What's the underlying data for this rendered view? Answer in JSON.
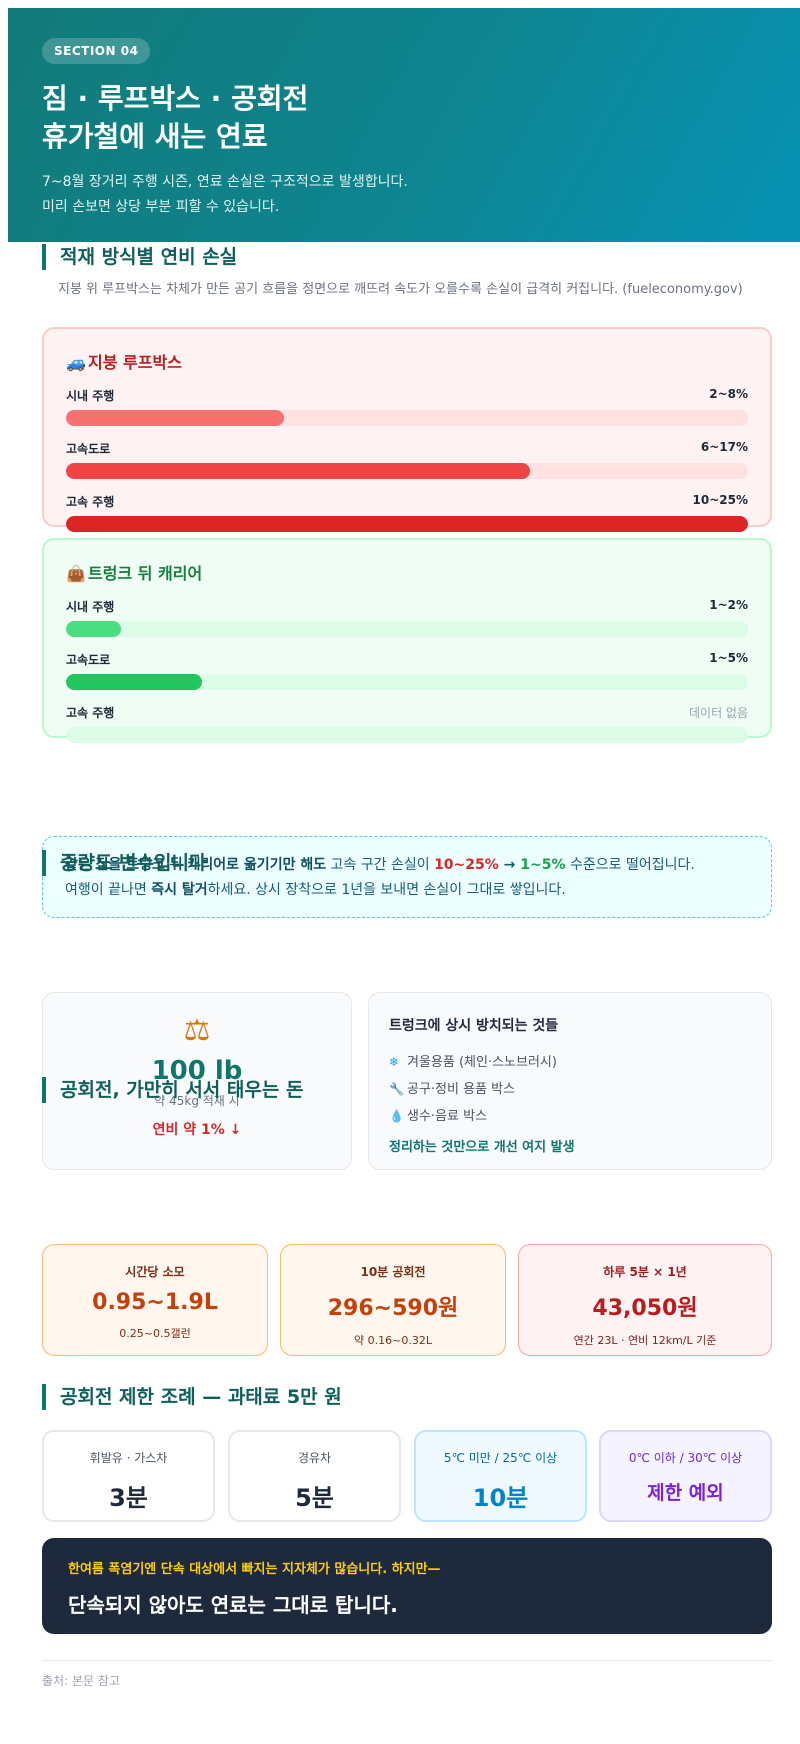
{
  "header": {
    "badge": "SECTION 04",
    "title_line1": "짐 · 루프박스 · 공회전",
    "title_line2": "휴가철에 새는 연료",
    "desc_line1": "7~8월 장거리 주행 시즌, 연료 손실은 구조적으로 발생합니다.",
    "desc_line2": "미리 손보면 상당 부분 피할 수 있습니다."
  },
  "load": {
    "title": "적재 방식별 연비 손실",
    "subtitle": "지붕 위 루프박스는 차체가 만든 공기 흐름을 정면으로 깨뜨려 속도가 오를수록 손실이 급격히 커집니다. (fueleconomy.gov)",
    "roof": {
      "icon": "car-icon",
      "title": "지붕 루프박스",
      "rows": [
        {
          "label": "시내 주행",
          "value": "2~8%",
          "level": 0.32,
          "color": "#f87171"
        },
        {
          "label": "고속도로",
          "value": "6~17%",
          "level": 0.68,
          "color": "#ef4444"
        },
        {
          "label": "고속 주행",
          "value": "10~25%",
          "level": 1.0,
          "color": "#dc2626"
        }
      ]
    },
    "carrier": {
      "icon": "luggage-icon",
      "title": "트렁크 뒤 캐리어",
      "rows": [
        {
          "label": "시내 주행",
          "value": "1~2%",
          "level": 0.08,
          "color": "#4ade80"
        },
        {
          "label": "고속도로",
          "value": "1~5%",
          "level": 0.2,
          "color": "#22c55e"
        },
        {
          "label": "고속 주행",
          "value": "데이터 없음",
          "level": 0,
          "color": "#22c55e"
        }
      ]
    }
  },
  "note": {
    "line1_a": "같은 짐을 트렁크 뒤 캐리어로 옮기기만 해도",
    "line1_b": " 고속 구간 손실이 ",
    "line1_red": "10~25%",
    "line1_arrow": " → ",
    "line1_green": "1~5%",
    "line1_c": " 수준으로 떨어집니다.",
    "line2_a": "여행이 끝나면 ",
    "line2_b": "즉시 탈거",
    "line2_c": "하세요. 상시 장착으로 1년을 보내면 손실이 그대로 쌓입니다."
  },
  "weight": {
    "title": "중량도 변수입니다",
    "icon": "scale-icon",
    "value": "100 lb",
    "sub": "약 45kg 적재 시",
    "drop": "연비 약 1% ↓",
    "list_title": "트렁크에 상시 방치되는 것들",
    "items": [
      {
        "icon": "snowflake-icon",
        "glyph": "❄",
        "label": "겨울용품 (체인·스노브러시)"
      },
      {
        "icon": "wrench-icon",
        "glyph": "🔧",
        "label": "공구·정비 용품 박스"
      },
      {
        "icon": "water-drop-icon",
        "glyph": "💧",
        "label": "생수·음료 박스"
      }
    ],
    "foot": "정리하는 것만으로 개선 여지 발생"
  },
  "idle": {
    "title": "공회전, 가만히 서서 태우는 돈",
    "cards": [
      {
        "label": "시간당 소모",
        "value": "0.95~1.9L",
        "sub": "0.25~0.5갤런"
      },
      {
        "label": "10분 공회전",
        "value": "296~590원",
        "sub": "약 0.16~0.32L"
      },
      {
        "label": "하루 5분 × 1년",
        "value": "43,050원",
        "sub": "연간 23L · 연비 12km/L 기준"
      }
    ]
  },
  "rules": {
    "title": "공회전 제한 조례 — 과태료 5만 원",
    "cards": [
      {
        "label": "휘발유 · 가스차",
        "value": "3분"
      },
      {
        "label": "경유차",
        "value": "5분"
      },
      {
        "label": "5℃ 미만 / 25℃ 이상",
        "value": "10분"
      },
      {
        "label": "0℃ 이하 / 30℃ 이상",
        "value": "제한 예외"
      }
    ]
  },
  "banner": {
    "small": "한여름 폭염기엔 단속 대상에서 빠지는 지자체가 많습니다. 하지만—",
    "big": "단속되지 않아도 연료는 그대로 탑니다."
  },
  "source": "출처: 본문 참고"
}
